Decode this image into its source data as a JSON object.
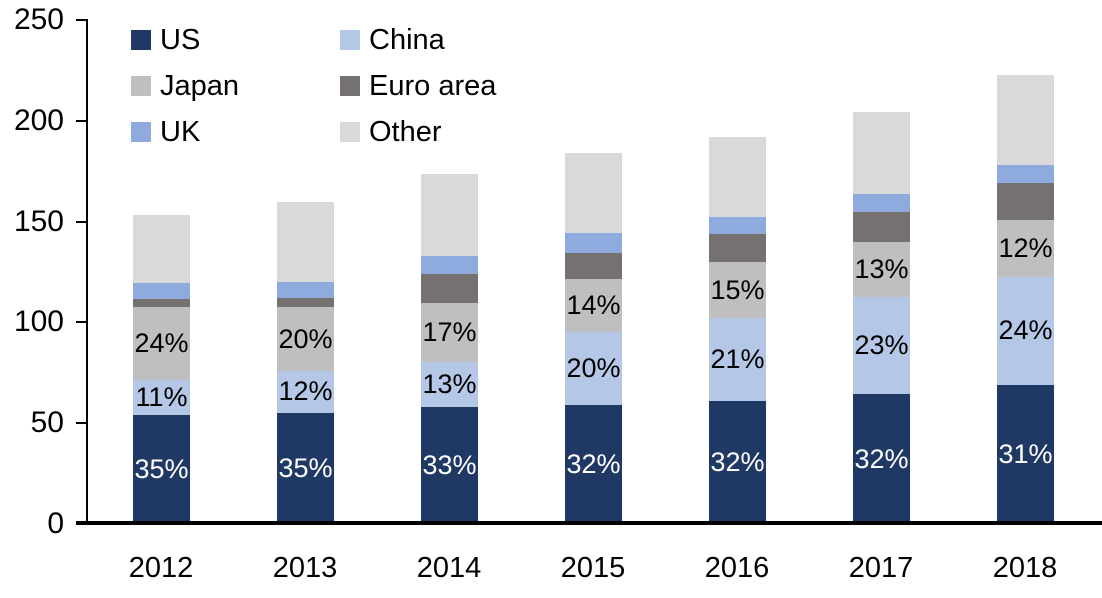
{
  "colors": {
    "us": "#1F3864",
    "china": "#B4C7E7",
    "japan": "#BFBFBF",
    "euro_area": "#767171",
    "uk": "#8FAADC",
    "other": "#D9D9D9",
    "axis": "#000000"
  },
  "legend": {
    "items": [
      {
        "label": "US",
        "key": "us"
      },
      {
        "label": "Japan",
        "key": "japan"
      },
      {
        "label": "UK",
        "key": "uk"
      },
      {
        "label": "China",
        "key": "china"
      },
      {
        "label": "Euro area",
        "key": "euro_area"
      },
      {
        "label": "Other",
        "key": "other"
      }
    ]
  },
  "y_axis": {
    "ticks": [
      "250",
      "200",
      "150",
      "100",
      "50",
      "0"
    ],
    "min": 0,
    "max": 250
  },
  "x_axis": {
    "categories": [
      "2012",
      "2013",
      "2014",
      "2015",
      "2016",
      "2017",
      "2018"
    ]
  },
  "chart_data": {
    "type": "bar",
    "stacked": true,
    "title": "",
    "xlabel": "",
    "ylabel": "",
    "ylim": [
      0,
      250
    ],
    "y_tick_step": 50,
    "grid": false,
    "legend_position": "top-left",
    "categories": [
      "2012",
      "2013",
      "2014",
      "2015",
      "2016",
      "2017",
      "2018"
    ],
    "totals": [
      153.5,
      160,
      173.5,
      184,
      192,
      204.5,
      222.5
    ],
    "series": [
      {
        "name": "US",
        "color": "#1F3864",
        "label_color": "#FFFFFF",
        "values": [
          54,
          55,
          58,
          59,
          61,
          64.5,
          69
        ],
        "labels": [
          "35%",
          "35%",
          "33%",
          "32%",
          "32%",
          "32%",
          "31%"
        ]
      },
      {
        "name": "China",
        "color": "#B4C7E7",
        "label_color": "#000000",
        "values": [
          17.5,
          21,
          22.5,
          36.5,
          41,
          48,
          53.5
        ],
        "labels": [
          "11%",
          "12%",
          "13%",
          "20%",
          "21%",
          "23%",
          "24%"
        ]
      },
      {
        "name": "Japan",
        "color": "#BFBFBF",
        "label_color": "#000000",
        "values": [
          36,
          31.5,
          29,
          26,
          28,
          27.5,
          28.5
        ],
        "labels": [
          "24%",
          "20%",
          "17%",
          "14%",
          "15%",
          "13%",
          "12%"
        ]
      },
      {
        "name": "Euro area",
        "color": "#767171",
        "label_color": null,
        "values": [
          4,
          4.5,
          14.5,
          13,
          14,
          15,
          18
        ],
        "labels": null
      },
      {
        "name": "UK",
        "color": "#8FAADC",
        "label_color": null,
        "values": [
          8,
          8,
          9,
          10,
          8.5,
          9,
          9
        ],
        "labels": null
      },
      {
        "name": "Other",
        "color": "#D9D9D9",
        "label_color": null,
        "values": [
          34,
          40,
          40.5,
          39.5,
          39.5,
          40.5,
          44.5
        ],
        "labels": null
      }
    ]
  }
}
